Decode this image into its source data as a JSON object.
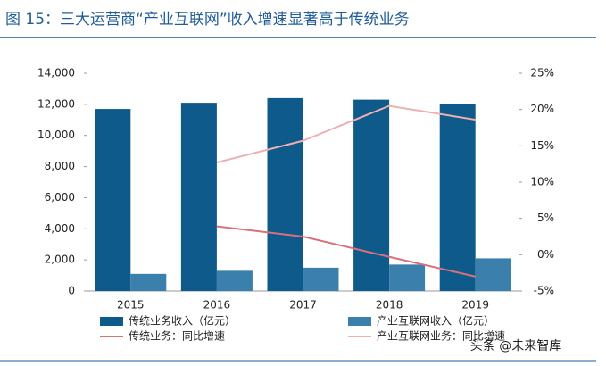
{
  "chart_data": {
    "type": "bar",
    "title": "图 15：三大运营商“产业互联网”收入增速显著高于传统业务",
    "categories": [
      "2015",
      "2016",
      "2017",
      "2018",
      "2019"
    ],
    "series": [
      {
        "name": "传统业务收入（亿元）",
        "type": "bar",
        "color": "#0e5a8a",
        "values": [
          11700,
          12100,
          12400,
          12300,
          12000
        ]
      },
      {
        "name": "产业互联网收入（亿元）",
        "type": "bar",
        "color": "#3b80ad",
        "values": [
          1100,
          1300,
          1500,
          1700,
          2100
        ]
      },
      {
        "name": "传统业务：同比增速",
        "type": "line",
        "axis": "y2",
        "color": "#d9707a",
        "values": [
          null,
          3.9,
          2.5,
          -0.3,
          -3.0
        ]
      },
      {
        "name": "产业互联网业务：同比增速",
        "type": "line",
        "axis": "y2",
        "color": "#eeb0b0",
        "values": [
          null,
          12.7,
          15.7,
          20.5,
          18.6
        ]
      }
    ],
    "ylim": [
      0,
      14000
    ],
    "yticks": [
      0,
      {
        "value": 2000,
        "label": "2,000"
      },
      {
        "value": 4000,
        "label": "4,000"
      },
      {
        "value": 6000,
        "label": "6,000"
      },
      {
        "value": 8000,
        "label": "8,000"
      },
      {
        "value": 10000,
        "label": "10,000"
      },
      {
        "value": 12000,
        "label": "12,000"
      },
      {
        "value": 14000,
        "label": "14,000"
      }
    ],
    "y2lim": [
      -5,
      25
    ],
    "y2ticks": [
      {
        "value": -5,
        "label": "-5%"
      },
      {
        "value": 0,
        "label": "0%"
      },
      {
        "value": 5,
        "label": "5%"
      },
      {
        "value": 10,
        "label": "10%"
      },
      {
        "value": 15,
        "label": "15%"
      },
      {
        "value": 20,
        "label": "20%"
      },
      {
        "value": 25,
        "label": "25%"
      }
    ],
    "watermark": "头条 @未来智库"
  }
}
